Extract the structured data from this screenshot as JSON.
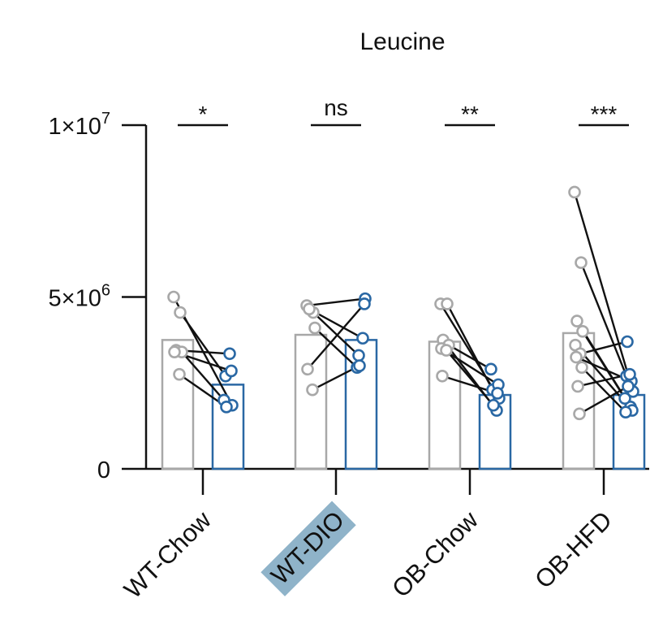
{
  "chart_data": {
    "type": "bar",
    "title": "Leucine",
    "xlabel": "",
    "ylabel": "",
    "ylim": [
      0,
      10000000
    ],
    "yticks": [
      {
        "value": 0,
        "base": "0",
        "exp": ""
      },
      {
        "value": 5000000,
        "base": "5×10",
        "exp": "6"
      },
      {
        "value": 10000000,
        "base": "1×10",
        "exp": "7"
      }
    ],
    "categories": [
      "WT-Chow",
      "WT-DIO",
      "OB-Chow",
      "OB-HFD"
    ],
    "highlighted_category": "WT-DIO",
    "colors": {
      "before": "#a8a8a8",
      "after": "#2a68a4",
      "pair_line": "#111111",
      "axis": "#111111",
      "highlight": "#8fb3c9"
    },
    "significance": [
      "*",
      "ns",
      "**",
      "***"
    ],
    "groups": [
      {
        "category": "WT-Chow",
        "before_mean": 3750000,
        "after_mean": 2450000,
        "before": [
          5000000,
          4550000,
          3450000,
          3400000,
          3400000,
          2750000
        ],
        "after": [
          1850000,
          2700000,
          3350000,
          2000000,
          2850000,
          1800000
        ]
      },
      {
        "category": "WT-DIO",
        "before_mean": 3900000,
        "after_mean": 3750000,
        "before": [
          4750000,
          4550000,
          4650000,
          4100000,
          2900000,
          2300000
        ],
        "after": [
          4950000,
          3300000,
          3800000,
          2950000,
          4800000,
          3000000
        ]
      },
      {
        "category": "OB-Chow",
        "before_mean": 3700000,
        "after_mean": 2150000,
        "before": [
          4800000,
          4800000,
          3750000,
          3600000,
          3500000,
          3450000,
          2700000
        ],
        "after": [
          2050000,
          2300000,
          1700000,
          2900000,
          2450000,
          1850000,
          2200000
        ]
      },
      {
        "category": "OB-HFD",
        "before_mean": 3950000,
        "after_mean": 2150000,
        "before": [
          8050000,
          6000000,
          4300000,
          4000000,
          3600000,
          3350000,
          3250000,
          2950000,
          2400000,
          1600000
        ],
        "after": [
          2250000,
          2700000,
          1800000,
          2050000,
          1700000,
          3700000,
          2550000,
          1650000,
          2750000,
          2400000
        ]
      }
    ]
  }
}
